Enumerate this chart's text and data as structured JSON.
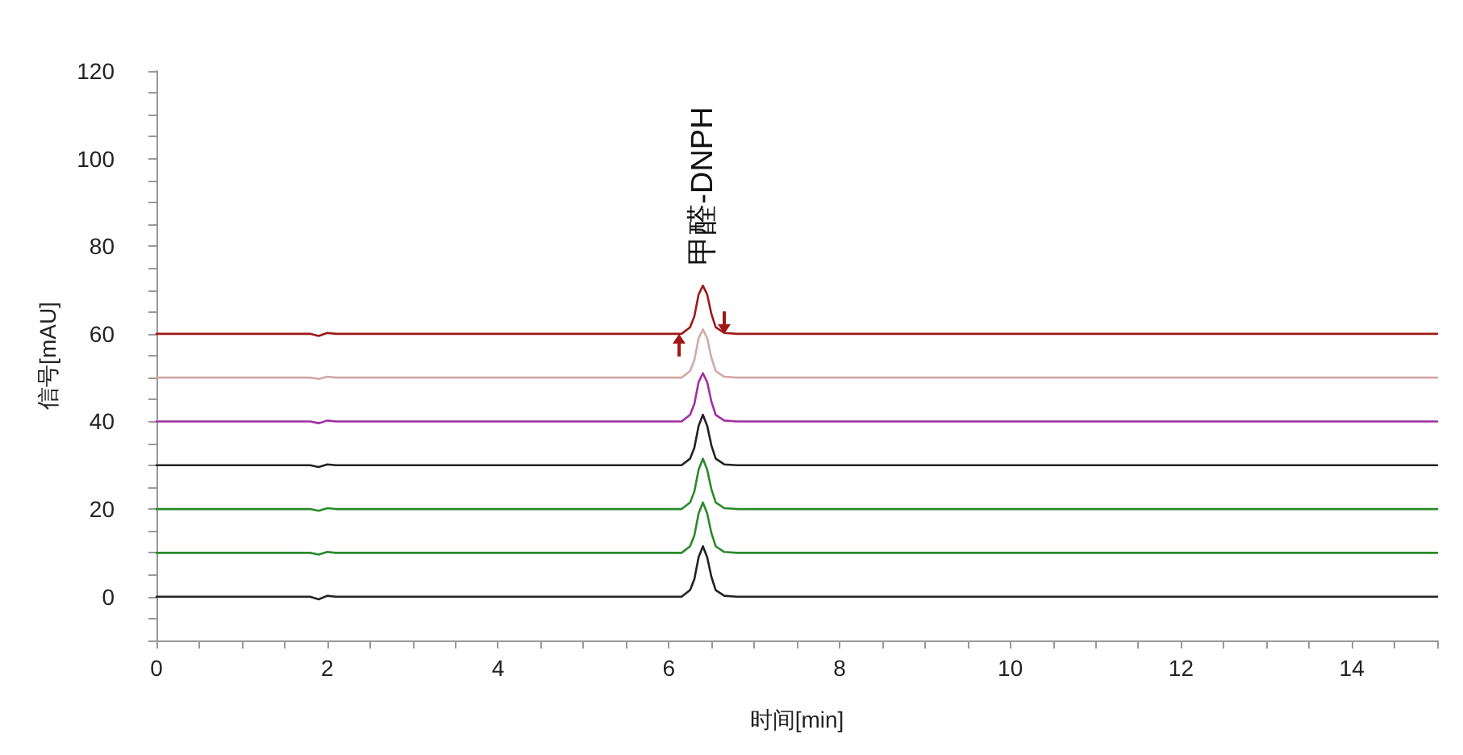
{
  "chart_data": {
    "type": "line",
    "xlabel": "时间[min]",
    "ylabel": "信号[mAU]",
    "annotations": [
      {
        "text": "甲醛-DNPH",
        "x": 6.4,
        "y": 72
      }
    ],
    "xlim": [
      0,
      15
    ],
    "ylim": [
      -10,
      120
    ],
    "xticks": [
      0,
      {
        "value": 0.5,
        "label": null
      },
      {
        "value": 1,
        "label": null
      },
      {
        "value": 1.5,
        "label": null
      },
      2,
      {
        "value": 2.5,
        "label": null
      },
      {
        "value": 3,
        "label": null
      },
      {
        "value": 3.5,
        "label": null
      },
      4,
      {
        "value": 4.5,
        "label": null
      },
      {
        "value": 5,
        "label": null
      },
      {
        "value": 5.5,
        "label": null
      },
      6,
      {
        "value": 6.5,
        "label": null
      },
      {
        "value": 7,
        "label": null
      },
      {
        "value": 7.5,
        "label": null
      },
      8,
      {
        "value": 8.5,
        "label": null
      },
      {
        "value": 9,
        "label": null
      },
      {
        "value": 9.5,
        "label": null
      },
      10,
      {
        "value": 10.5,
        "label": null
      },
      {
        "value": 11,
        "label": null
      },
      {
        "value": 11.5,
        "label": null
      },
      12,
      {
        "value": 12.5,
        "label": null
      },
      {
        "value": 13,
        "label": null
      },
      {
        "value": 13.5,
        "label": null
      },
      14,
      {
        "value": 14.5,
        "label": null
      },
      {
        "value": 15,
        "label": null
      }
    ],
    "yticks": [
      {
        "value": -10,
        "label": null
      },
      {
        "value": -5,
        "label": null
      },
      0,
      {
        "value": 5,
        "label": null
      },
      {
        "value": 10,
        "label": null
      },
      {
        "value": 15,
        "label": null
      },
      20,
      {
        "value": 25,
        "label": null
      },
      {
        "value": 30,
        "label": null
      },
      {
        "value": 35,
        "label": null
      },
      40,
      {
        "value": 45,
        "label": null
      },
      {
        "value": 50,
        "label": null
      },
      {
        "value": 55,
        "label": null
      },
      60,
      {
        "value": 65,
        "label": null
      },
      {
        "value": 70,
        "label": null
      },
      {
        "value": 75,
        "label": null
      },
      80,
      {
        "value": 85,
        "label": null
      },
      {
        "value": 90,
        "label": null
      },
      {
        "value": 95,
        "label": null
      },
      100,
      {
        "value": 105,
        "label": null
      },
      {
        "value": 110,
        "label": null
      },
      {
        "value": 115,
        "label": null
      },
      120
    ],
    "grid": false,
    "marker": "none",
    "line_style": "solid",
    "x": [
      0,
      1.8,
      1.9,
      2.0,
      2.1,
      6.15,
      6.25,
      6.3,
      6.35,
      6.4,
      6.45,
      6.5,
      6.55,
      6.65,
      6.8,
      15
    ],
    "series": [
      {
        "color": "#222222",
        "values": [
          0,
          0,
          -0.6,
          0.2,
          0,
          0,
          1.5,
          4,
          9,
          11.5,
          9,
          4.5,
          1.5,
          0.2,
          0,
          0
        ]
      },
      {
        "color": "#2a8a2a",
        "values": [
          10,
          10,
          9.6,
          10.2,
          10,
          10,
          11.5,
          14,
          19,
          21.5,
          19,
          14.5,
          11.5,
          10.2,
          10,
          10
        ]
      },
      {
        "color": "#2a8a2a",
        "values": [
          20,
          20,
          19.6,
          20.2,
          20,
          20,
          21.5,
          24,
          29,
          31.5,
          29,
          24.5,
          21.5,
          20.2,
          20,
          20
        ]
      },
      {
        "color": "#222222",
        "values": [
          30,
          30,
          29.6,
          30.2,
          30,
          30,
          31.5,
          34,
          39,
          41.5,
          39,
          34.5,
          31.5,
          30.2,
          30,
          30
        ]
      },
      {
        "color": "#a030a0",
        "values": [
          40,
          40,
          39.6,
          40.2,
          40,
          40,
          41.5,
          44,
          49,
          51,
          49,
          44.5,
          41.5,
          40.2,
          40,
          40
        ]
      },
      {
        "color": "#d4a8a8",
        "values": [
          50,
          50,
          49.7,
          50.2,
          50,
          50,
          51.5,
          54,
          59,
          61,
          59,
          54.5,
          51.5,
          50.2,
          50,
          50
        ]
      },
      {
        "color": "#a01818",
        "values": [
          60,
          60,
          59.5,
          60.2,
          60,
          60,
          61.5,
          64,
          69,
          71,
          69,
          64.5,
          61.5,
          60.2,
          60,
          60
        ]
      }
    ]
  }
}
